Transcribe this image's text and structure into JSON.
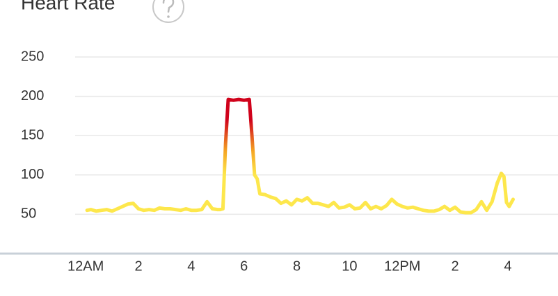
{
  "chart_data": {
    "type": "line",
    "title": "Heart Rate",
    "gradient_colors": [
      "#fde74c",
      "#f5a623",
      "#d0021b"
    ],
    "ylim": [
      0,
      250
    ],
    "yticks": [
      50,
      100,
      150,
      200,
      250
    ],
    "grid": true,
    "xlim": [
      -0.4,
      17.9
    ],
    "xticks": [
      {
        "value": 0,
        "label": "12AM"
      },
      2,
      4,
      6,
      8,
      10,
      {
        "value": 12,
        "label": "12PM"
      },
      {
        "value": 14,
        "label": "2"
      },
      {
        "value": 16,
        "label": "4"
      }
    ],
    "x": [
      0.05,
      0.2,
      0.4,
      0.6,
      0.8,
      1.0,
      1.2,
      1.4,
      1.6,
      1.8,
      2.0,
      2.2,
      2.4,
      2.6,
      2.8,
      3.0,
      3.2,
      3.4,
      3.6,
      3.8,
      4.0,
      4.2,
      4.4,
      4.6,
      4.8,
      5.0,
      5.1,
      5.2,
      5.3,
      5.4,
      5.6,
      5.8,
      6.0,
      6.2,
      6.3,
      6.4,
      6.5,
      6.6,
      6.8,
      7.0,
      7.2,
      7.4,
      7.6,
      7.8,
      8.0,
      8.2,
      8.4,
      8.6,
      8.8,
      9.0,
      9.2,
      9.4,
      9.6,
      9.8,
      10.0,
      10.2,
      10.4,
      10.6,
      10.8,
      11.0,
      11.2,
      11.4,
      11.6,
      11.8,
      12.0,
      12.2,
      12.4,
      12.6,
      12.8,
      13.0,
      13.2,
      13.4,
      13.6,
      13.8,
      14.0,
      14.2,
      14.4,
      14.6,
      14.8,
      15.0,
      15.2,
      15.4,
      15.6,
      15.75,
      15.85,
      15.95,
      16.05,
      16.2
    ],
    "values": [
      55,
      56,
      54,
      55,
      56,
      54,
      57,
      60,
      63,
      64,
      57,
      55,
      56,
      55,
      58,
      57,
      57,
      56,
      55,
      57,
      55,
      55,
      56,
      66,
      57,
      56,
      56,
      57,
      140,
      196,
      195,
      196,
      195,
      196,
      150,
      100,
      95,
      76,
      75,
      72,
      70,
      64,
      67,
      62,
      69,
      67,
      71,
      64,
      64,
      62,
      60,
      65,
      58,
      59,
      62,
      57,
      58,
      65,
      57,
      60,
      57,
      61,
      69,
      63,
      60,
      58,
      59,
      57,
      55,
      54,
      54,
      56,
      60,
      55,
      59,
      53,
      52,
      52,
      56,
      66,
      55,
      66,
      90,
      102,
      98,
      65,
      60,
      69
    ]
  }
}
